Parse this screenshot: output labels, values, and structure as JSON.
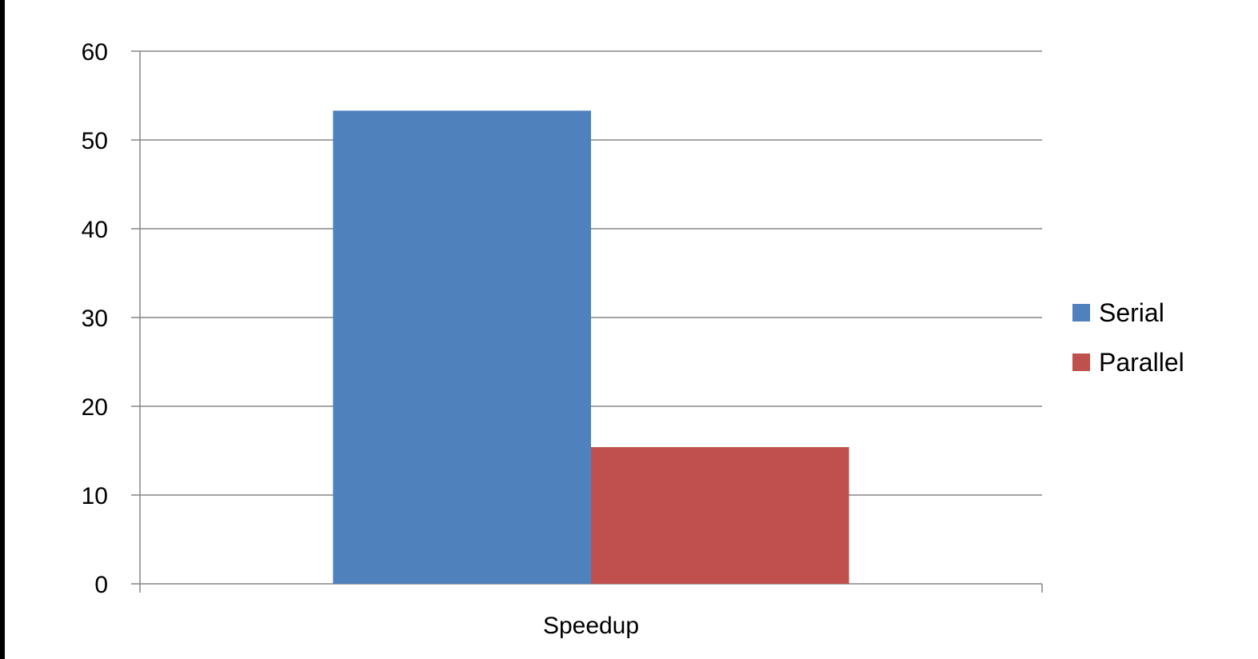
{
  "chart_data": {
    "type": "bar",
    "title": "",
    "xlabel": "",
    "ylabel": "",
    "categories": [
      "Speedup"
    ],
    "series": [
      {
        "name": "Serial",
        "values": [
          53.3
        ],
        "color": "#4F81BD"
      },
      {
        "name": "Parallel",
        "values": [
          15.4
        ],
        "color": "#C0504D"
      }
    ],
    "ylim": [
      0,
      60
    ],
    "yticks": [
      "0",
      "10",
      "20",
      "30",
      "40",
      "50",
      "60"
    ],
    "grid": true,
    "legend_position": "right"
  }
}
